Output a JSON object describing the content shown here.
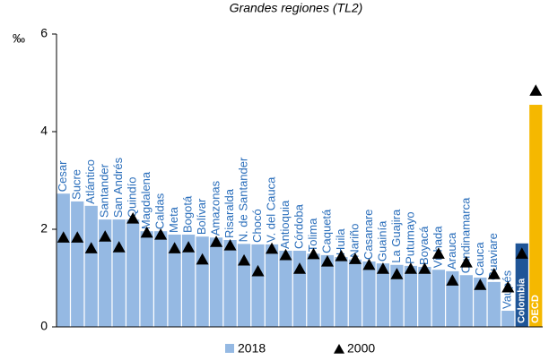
{
  "chart_data": {
    "type": "bar",
    "title": "Grandes regiones (TL2)",
    "y_label": "‰",
    "categories": [
      "Cesar",
      "Sucre",
      "Atlántico",
      "Santander",
      "San Andrés",
      "Quindío",
      "Magdalena",
      "Caldas",
      "Meta",
      "Bogotá",
      "Bolívar",
      "Amazonas",
      "Risaralda",
      "N. de Santander",
      "Chocó",
      "V. del Cauca",
      "Antioquia",
      "Córdoba",
      "Tolima",
      "Caquetá",
      "Huila",
      "Nariño",
      "Casanare",
      "Guainía",
      "La Guajira",
      "Putumayo",
      "Boyacá",
      "Vichada",
      "Arauca",
      "Cundinamarca",
      "Cauca",
      "Guaviare",
      "Vaupés",
      "Colombia",
      "OECD"
    ],
    "series": [
      {
        "name": "2018",
        "color": "#95b9e3",
        "colors": [
          "#95b9e3",
          "#95b9e3",
          "#95b9e3",
          "#95b9e3",
          "#95b9e3",
          "#95b9e3",
          "#95b9e3",
          "#95b9e3",
          "#95b9e3",
          "#95b9e3",
          "#95b9e3",
          "#95b9e3",
          "#95b9e3",
          "#95b9e3",
          "#95b9e3",
          "#95b9e3",
          "#95b9e3",
          "#95b9e3",
          "#95b9e3",
          "#95b9e3",
          "#95b9e3",
          "#95b9e3",
          "#95b9e3",
          "#95b9e3",
          "#95b9e3",
          "#95b9e3",
          "#95b9e3",
          "#95b9e3",
          "#95b9e3",
          "#95b9e3",
          "#95b9e3",
          "#95b9e3",
          "#95b9e3",
          "#1f5597",
          "#f5b800"
        ],
        "values": [
          2.73,
          2.57,
          2.48,
          2.2,
          2.2,
          2.2,
          1.96,
          1.96,
          1.89,
          1.89,
          1.85,
          1.83,
          1.78,
          1.7,
          1.69,
          1.69,
          1.56,
          1.56,
          1.5,
          1.47,
          1.43,
          1.38,
          1.34,
          1.3,
          1.27,
          1.25,
          1.23,
          1.17,
          1.14,
          1.06,
          1.01,
          0.92,
          0.33,
          1.71,
          4.55
        ]
      },
      {
        "name": "2000",
        "color": "#000000",
        "marker": "triangle",
        "values": [
          1.83,
          1.83,
          1.61,
          1.85,
          1.63,
          2.22,
          1.93,
          1.89,
          1.61,
          1.63,
          1.38,
          1.74,
          1.67,
          1.36,
          1.14,
          1.6,
          1.47,
          1.19,
          1.49,
          1.34,
          1.45,
          1.39,
          1.27,
          1.19,
          1.08,
          1.19,
          1.19,
          1.5,
          0.95,
          1.32,
          0.86,
          1.08,
          0.81,
          1.5,
          4.84
        ]
      }
    ],
    "inside_labels": [
      "Colombia",
      "OECD"
    ],
    "ylim": [
      0,
      6
    ],
    "yticks": [
      0,
      2,
      4,
      6
    ],
    "grid": false,
    "legend": "bottom"
  }
}
